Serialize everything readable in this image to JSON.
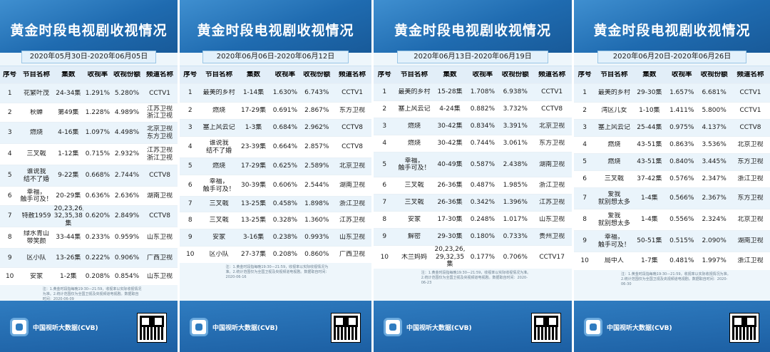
{
  "title": "黄金时段电视剧收视情况",
  "brand": "中国视听大数据(CVB)",
  "headers": [
    "序号",
    "节目名称",
    "集数",
    "收视率",
    "收视份额",
    "频道名称"
  ],
  "panels": [
    {
      "date_range": "2020年05月30日-2020年06月05日",
      "note": "注：1.黄金时段指每晚19:30—21:59，收视率以实际收视情况为准。2.统计范围仅为全国卫视及央视频道电视剧。数据取自时间：2020-06-09",
      "rows": [
        [
          "1",
          "花繁叶茂",
          "24-34集",
          "1.291%",
          "5.280%",
          "CCTV1"
        ],
        [
          "2",
          "秋蝉",
          "第49集",
          "1.228%",
          "4.989%",
          "江苏卫视\n浙江卫视"
        ],
        [
          "3",
          "燃烧",
          "4-16集",
          "1.097%",
          "4.498%",
          "北京卫视\n东方卫视"
        ],
        [
          "4",
          "三叉戟",
          "1-12集",
          "0.715%",
          "2.932%",
          "江苏卫视\n浙江卫视"
        ],
        [
          "5",
          "谁说我\n结不了婚",
          "9-22集",
          "0.668%",
          "2.744%",
          "CCTV8"
        ],
        [
          "6",
          "幸福，\n触手可及！",
          "20-29集",
          "0.636%",
          "2.636%",
          "湖南卫视"
        ],
        [
          "7",
          "特赦1959",
          "20,23,26,29,\n32,35,38集",
          "0.620%",
          "2.849%",
          "CCTV8"
        ],
        [
          "8",
          "绿水青山\n带笑颜",
          "33-44集",
          "0.233%",
          "0.959%",
          "山东卫视"
        ],
        [
          "9",
          "区小队",
          "13-26集",
          "0.222%",
          "0.906%",
          "广西卫视"
        ],
        [
          "10",
          "安家",
          "1-2集",
          "0.208%",
          "0.854%",
          "山东卫视"
        ]
      ]
    },
    {
      "date_range": "2020年06月06日-2020年06月12日",
      "note": "注：1.黄金时段指每晚19:30—21:59，收视率以实际收视情况为准。2.统计范围仅为全国卫视及央视频道电视剧。数据取自时间：2020-06-16",
      "rows": [
        [
          "1",
          "最美的乡村",
          "1-14集",
          "1.630%",
          "6.743%",
          "CCTV1"
        ],
        [
          "2",
          "燃烧",
          "17-29集",
          "0.691%",
          "2.867%",
          "东方卫视"
        ],
        [
          "3",
          "塞上风云记",
          "1-3集",
          "0.684%",
          "2.962%",
          "CCTV8"
        ],
        [
          "4",
          "谁说我\n结不了婚",
          "23-39集",
          "0.664%",
          "2.857%",
          "CCTV8"
        ],
        [
          "5",
          "燃烧",
          "17-29集",
          "0.625%",
          "2.589%",
          "北京卫视"
        ],
        [
          "6",
          "幸福，\n触手可及！",
          "30-39集",
          "0.606%",
          "2.544%",
          "湖南卫视"
        ],
        [
          "7",
          "三叉戟",
          "13-25集",
          "0.458%",
          "1.898%",
          "浙江卫视"
        ],
        [
          "8",
          "三叉戟",
          "13-25集",
          "0.328%",
          "1.360%",
          "江苏卫视"
        ],
        [
          "9",
          "安家",
          "3-16集",
          "0.238%",
          "0.993%",
          "山东卫视"
        ],
        [
          "10",
          "区小队",
          "27-37集",
          "0.208%",
          "0.860%",
          "广西卫视"
        ]
      ]
    },
    {
      "date_range": "2020年06月13日-2020年06月19日",
      "note": "注：1.黄金时段指每晚19:30—21:59，收视率以实际收视情况为准。2.统计范围仅为全国卫视及央视频道电视剧。数据取自时间：2020-06-23",
      "rows": [
        [
          "1",
          "最美的乡村",
          "15-28集",
          "1.708%",
          "6.938%",
          "CCTV1"
        ],
        [
          "2",
          "塞上风云记",
          "4-24集",
          "0.882%",
          "3.732%",
          "CCTV8"
        ],
        [
          "3",
          "燃烧",
          "30-42集",
          "0.834%",
          "3.391%",
          "北京卫视"
        ],
        [
          "4",
          "燃烧",
          "30-42集",
          "0.744%",
          "3.061%",
          "东方卫视"
        ],
        [
          "5",
          "幸福，\n触手可及！",
          "40-49集",
          "0.587%",
          "2.438%",
          "湖南卫视"
        ],
        [
          "6",
          "三叉戟",
          "26-36集",
          "0.487%",
          "1.985%",
          "浙江卫视"
        ],
        [
          "7",
          "三叉戟",
          "26-36集",
          "0.342%",
          "1.396%",
          "江苏卫视"
        ],
        [
          "8",
          "安家",
          "17-30集",
          "0.248%",
          "1.017%",
          "山东卫视"
        ],
        [
          "9",
          "解密",
          "29-30集",
          "0.180%",
          "0.733%",
          "贵州卫视"
        ],
        [
          "10",
          "木兰妈妈",
          "20,23,26,\n29,32,35集",
          "0.177%",
          "0.706%",
          "CCTV17"
        ]
      ]
    },
    {
      "date_range": "2020年06月20日-2020年06月26日",
      "note": "注：1.黄金时段指每晚19:30—21:59，收视率以实际收视情况为准。2.统计范围仅为全国卫视及央视频道电视剧。数据取自时间：2020-06-30",
      "rows": [
        [
          "1",
          "最美的乡村",
          "29-30集",
          "1.657%",
          "6.681%",
          "CCTV1"
        ],
        [
          "2",
          "湾区儿女",
          "1-10集",
          "1.411%",
          "5.800%",
          "CCTV1"
        ],
        [
          "3",
          "塞上风云记",
          "25-44集",
          "0.975%",
          "4.137%",
          "CCTV8"
        ],
        [
          "4",
          "燃烧",
          "43-51集",
          "0.863%",
          "3.536%",
          "北京卫视"
        ],
        [
          "5",
          "燃烧",
          "43-51集",
          "0.840%",
          "3.445%",
          "东方卫视"
        ],
        [
          "6",
          "三叉戟",
          "37-42集",
          "0.576%",
          "2.347%",
          "浙江卫视"
        ],
        [
          "7",
          "爱我\n就别想太多",
          "1-4集",
          "0.566%",
          "2.367%",
          "东方卫视"
        ],
        [
          "8",
          "爱我\n就别想太多",
          "1-4集",
          "0.556%",
          "2.324%",
          "北京卫视"
        ],
        [
          "9",
          "幸福，\n触手可及！",
          "50-51集",
          "0.515%",
          "2.090%",
          "湖南卫视"
        ],
        [
          "10",
          "局中人",
          "1-7集",
          "0.481%",
          "1.997%",
          "浙江卫视"
        ]
      ]
    }
  ]
}
